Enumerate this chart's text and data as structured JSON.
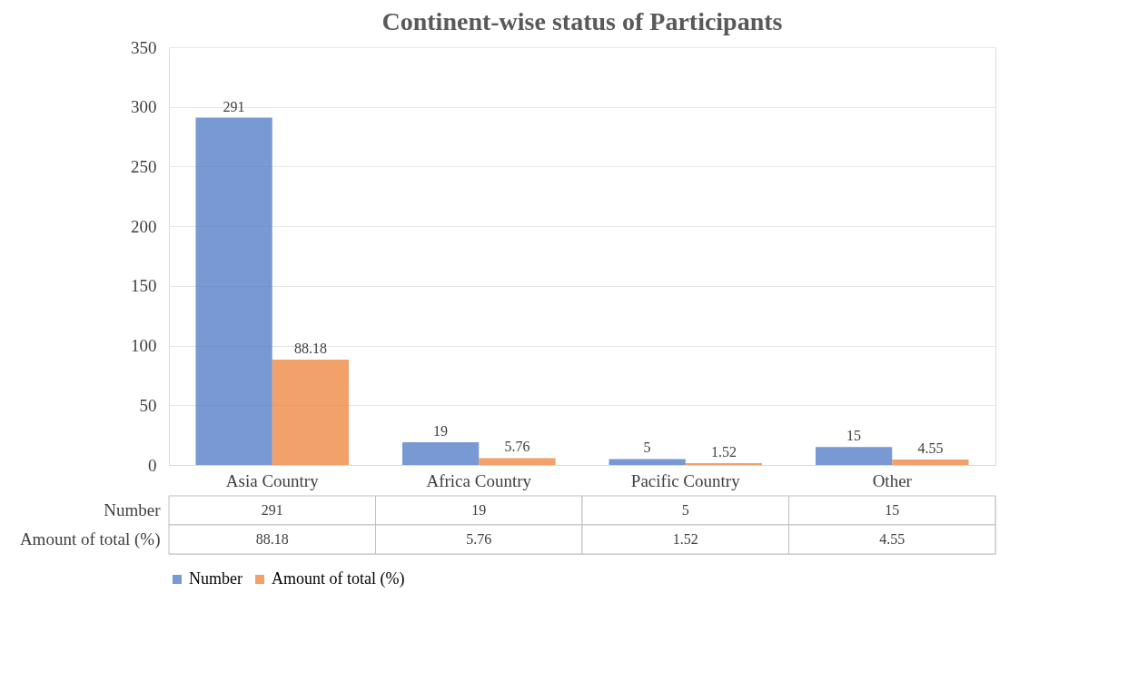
{
  "chart_data": {
    "type": "bar",
    "title": "Continent-wise status of Participants",
    "categories": [
      "Asia Country",
      "Africa Country",
      "Pacific Country",
      "Other"
    ],
    "series": [
      {
        "name": "Number",
        "color": "#4472c4",
        "values": [
          291,
          19,
          5,
          15
        ]
      },
      {
        "name": "Amount of total (%)",
        "color": "#ed7d31",
        "values": [
          88.18,
          5.76,
          1.52,
          4.55
        ]
      }
    ],
    "ylim": [
      0,
      350
    ],
    "yticks": [
      0,
      50,
      100,
      150,
      200,
      250,
      300,
      350
    ],
    "grid": "y",
    "legend": "bottom",
    "data_labels": true,
    "annotations": [
      "291",
      "19",
      "5",
      "15",
      "88.18",
      "5.76",
      "1.52",
      "4.55"
    ]
  }
}
